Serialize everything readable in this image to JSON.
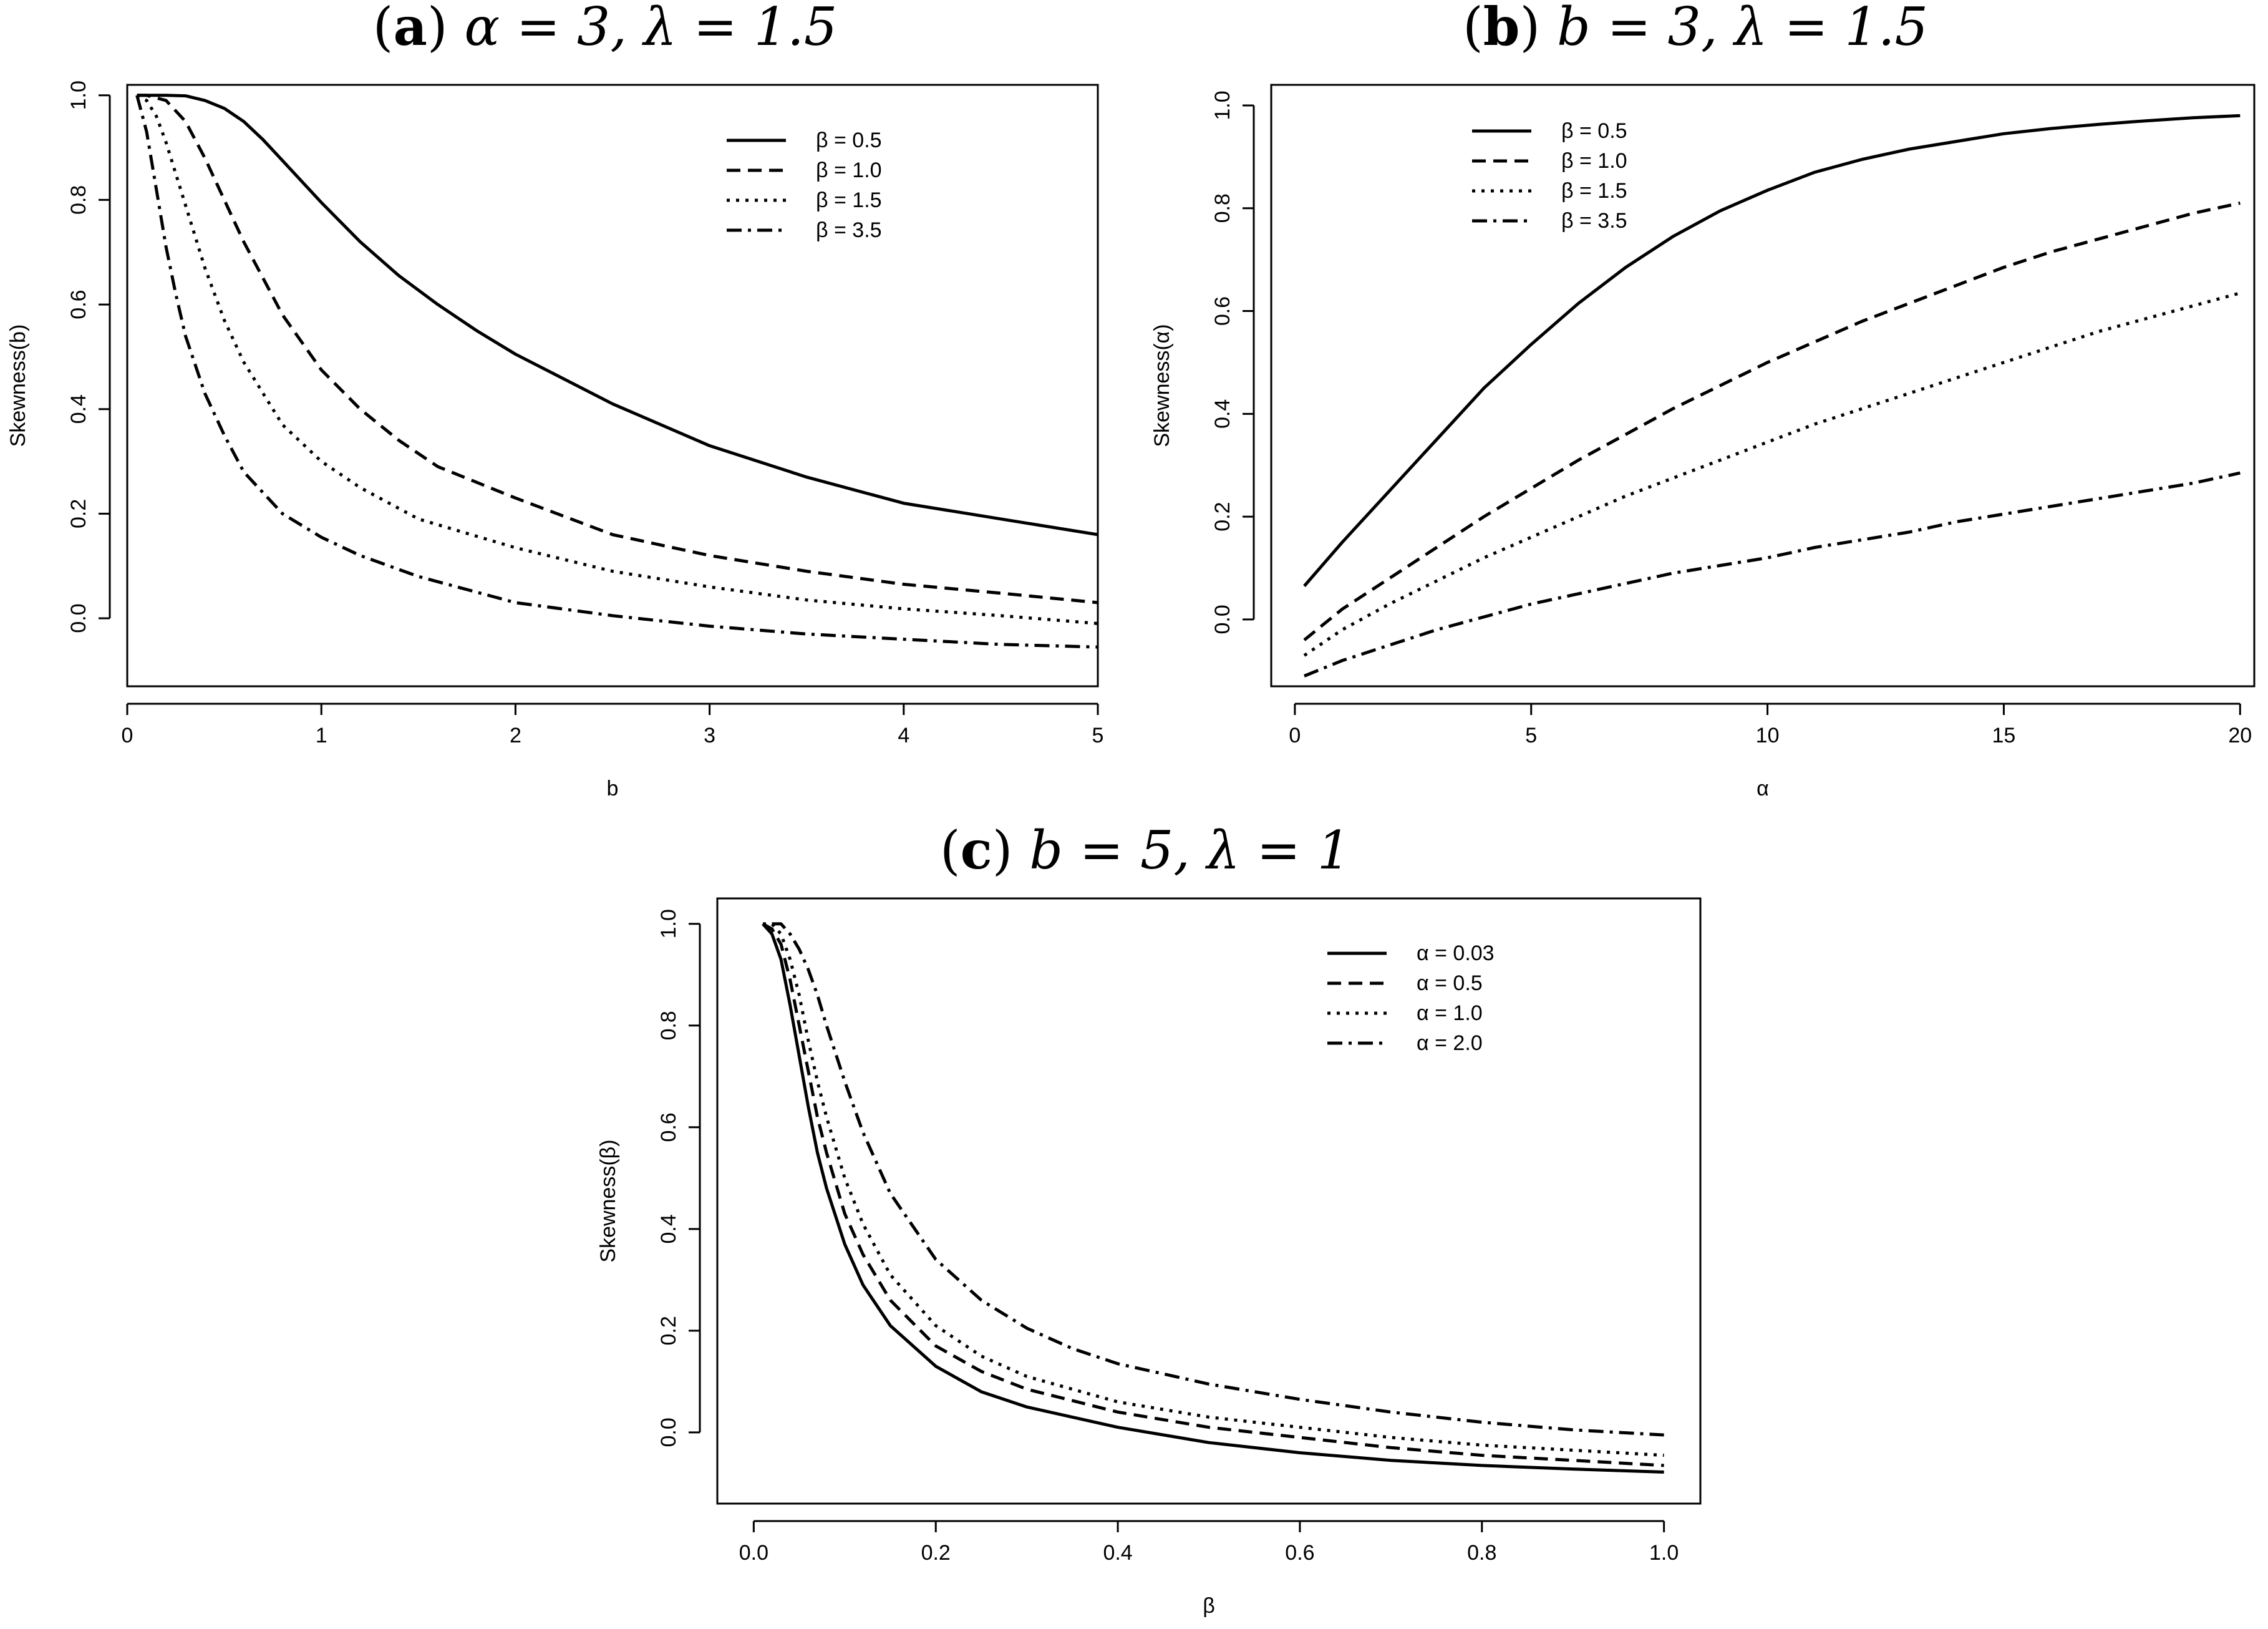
{
  "chart_data": [
    {
      "type": "line",
      "panel": "a",
      "title": {
        "letter": "a",
        "params": "α = 3, λ = 1.5"
      },
      "xlabel": "b",
      "ylabel": "Skewness(b)",
      "xlim": [
        0,
        5
      ],
      "ylim": [
        -0.13,
        1.02
      ],
      "xticks": [
        0,
        1,
        2,
        3,
        4,
        5
      ],
      "yticks": [
        0.0,
        0.2,
        0.4,
        0.6,
        0.8,
        1.0
      ],
      "xtick_labels": [
        "0",
        "1",
        "2",
        "3",
        "4",
        "5"
      ],
      "ytick_labels": [
        "0.0",
        "0.2",
        "0.4",
        "0.6",
        "0.8",
        "1.0"
      ],
      "legend_position": "top-right",
      "series": [
        {
          "name": "β = 0.5",
          "dash": "solid",
          "x": [
            0.05,
            0.2,
            0.3,
            0.4,
            0.5,
            0.6,
            0.7,
            0.8,
            0.9,
            1.0,
            1.2,
            1.4,
            1.6,
            1.8,
            2.0,
            2.5,
            3.0,
            3.5,
            4.0,
            4.5,
            5.0
          ],
          "y": [
            1.0,
            1.0,
            0.999,
            0.99,
            0.975,
            0.95,
            0.915,
            0.875,
            0.835,
            0.795,
            0.72,
            0.655,
            0.6,
            0.55,
            0.505,
            0.41,
            0.33,
            0.27,
            0.22,
            0.19,
            0.16
          ]
        },
        {
          "name": "β = 1.0",
          "dash": "dashed",
          "x": [
            0.05,
            0.1,
            0.2,
            0.3,
            0.4,
            0.5,
            0.6,
            0.8,
            1.0,
            1.2,
            1.4,
            1.6,
            2.0,
            2.5,
            3.0,
            3.5,
            4.0,
            4.5,
            5.0
          ],
          "y": [
            1.0,
            1.0,
            0.99,
            0.95,
            0.88,
            0.8,
            0.72,
            0.58,
            0.475,
            0.4,
            0.34,
            0.29,
            0.23,
            0.16,
            0.12,
            0.09,
            0.065,
            0.048,
            0.03
          ]
        },
        {
          "name": "β = 1.5",
          "dash": "dotted",
          "x": [
            0.05,
            0.1,
            0.15,
            0.2,
            0.3,
            0.4,
            0.5,
            0.6,
            0.8,
            1.0,
            1.2,
            1.5,
            2.0,
            2.5,
            3.0,
            3.5,
            4.0,
            4.5,
            5.0
          ],
          "y": [
            1.0,
            0.99,
            0.96,
            0.91,
            0.79,
            0.67,
            0.57,
            0.49,
            0.37,
            0.3,
            0.25,
            0.19,
            0.135,
            0.09,
            0.06,
            0.035,
            0.018,
            0.005,
            -0.01
          ]
        },
        {
          "name": "β = 3.5",
          "dash": "dashdot",
          "x": [
            0.05,
            0.1,
            0.15,
            0.2,
            0.25,
            0.3,
            0.4,
            0.5,
            0.6,
            0.8,
            1.0,
            1.2,
            1.5,
            2.0,
            2.5,
            3.0,
            3.5,
            4.0,
            4.5,
            5.0
          ],
          "y": [
            1.0,
            0.93,
            0.82,
            0.71,
            0.62,
            0.54,
            0.43,
            0.35,
            0.28,
            0.2,
            0.155,
            0.12,
            0.08,
            0.03,
            0.005,
            -0.015,
            -0.03,
            -0.04,
            -0.05,
            -0.055
          ]
        }
      ]
    },
    {
      "type": "line",
      "panel": "b",
      "title": {
        "letter": "b",
        "params": "b = 3, λ = 1.5"
      },
      "xlabel": "α",
      "ylabel": "Skewness(α)",
      "xlim": [
        -0.5,
        20.3
      ],
      "ylim": [
        -0.13,
        1.04
      ],
      "xticks": [
        0,
        5,
        10,
        15,
        20
      ],
      "yticks": [
        0.0,
        0.2,
        0.4,
        0.6,
        0.8,
        1.0
      ],
      "xtick_labels": [
        "0",
        "5",
        "10",
        "15",
        "20"
      ],
      "ytick_labels": [
        "0.0",
        "0.2",
        "0.4",
        "0.6",
        "0.8",
        "1.0"
      ],
      "legend_position": "top-left",
      "series": [
        {
          "name": "β = 0.5",
          "dash": "solid",
          "x": [
            0.2,
            1,
            2,
            3,
            4,
            5,
            6,
            7,
            8,
            9,
            10,
            11,
            12,
            13,
            14,
            15,
            16,
            17,
            18,
            19,
            20
          ],
          "y": [
            0.065,
            0.15,
            0.25,
            0.35,
            0.45,
            0.535,
            0.615,
            0.685,
            0.745,
            0.795,
            0.835,
            0.87,
            0.895,
            0.915,
            0.93,
            0.945,
            0.955,
            0.963,
            0.97,
            0.976,
            0.98
          ]
        },
        {
          "name": "β = 1.0",
          "dash": "dashed",
          "x": [
            0.2,
            1,
            2,
            3,
            4,
            5,
            6,
            7,
            8,
            9,
            10,
            11,
            12,
            13,
            14,
            15,
            16,
            17,
            18,
            19,
            20
          ],
          "y": [
            -0.04,
            0.02,
            0.08,
            0.14,
            0.2,
            0.255,
            0.31,
            0.36,
            0.41,
            0.455,
            0.5,
            0.54,
            0.58,
            0.615,
            0.65,
            0.685,
            0.715,
            0.74,
            0.765,
            0.79,
            0.81
          ]
        },
        {
          "name": "β = 1.5",
          "dash": "dotted",
          "x": [
            0.2,
            1,
            2,
            3,
            4,
            5,
            6,
            7,
            8,
            9,
            10,
            11,
            12,
            13,
            14,
            15,
            16,
            17,
            18,
            19,
            20
          ],
          "y": [
            -0.07,
            -0.02,
            0.03,
            0.075,
            0.12,
            0.16,
            0.2,
            0.24,
            0.275,
            0.31,
            0.345,
            0.38,
            0.41,
            0.44,
            0.47,
            0.5,
            0.53,
            0.56,
            0.585,
            0.61,
            0.635
          ]
        },
        {
          "name": "β = 3.5",
          "dash": "dashdot",
          "x": [
            0.2,
            1,
            2,
            3,
            4,
            5,
            6,
            7,
            8,
            9,
            10,
            11,
            12,
            13,
            14,
            15,
            16,
            17,
            18,
            19,
            20
          ],
          "y": [
            -0.11,
            -0.08,
            -0.05,
            -0.02,
            0.005,
            0.03,
            0.05,
            0.07,
            0.09,
            0.105,
            0.12,
            0.14,
            0.155,
            0.17,
            0.19,
            0.205,
            0.22,
            0.235,
            0.25,
            0.265,
            0.285
          ]
        }
      ]
    },
    {
      "type": "line",
      "panel": "c",
      "title": {
        "letter": "c",
        "params": "b = 5, λ = 1"
      },
      "xlabel": "β",
      "ylabel": "Skewness(β)",
      "xlim": [
        -0.04,
        1.04
      ],
      "ylim": [
        -0.14,
        1.05
      ],
      "xticks": [
        0.0,
        0.2,
        0.4,
        0.6,
        0.8,
        1.0
      ],
      "yticks": [
        0.0,
        0.2,
        0.4,
        0.6,
        0.8,
        1.0
      ],
      "xtick_labels": [
        "0.0",
        "0.2",
        "0.4",
        "0.6",
        "0.8",
        "1.0"
      ],
      "ytick_labels": [
        "0.0",
        "0.2",
        "0.4",
        "0.6",
        "0.8",
        "1.0"
      ],
      "legend_position": "top-right",
      "series": [
        {
          "name": "α = 0.03",
          "dash": "solid",
          "x": [
            0.01,
            0.02,
            0.03,
            0.04,
            0.05,
            0.06,
            0.07,
            0.08,
            0.1,
            0.12,
            0.15,
            0.2,
            0.25,
            0.3,
            0.4,
            0.5,
            0.6,
            0.7,
            0.8,
            0.9,
            1.0
          ],
          "y": [
            1.0,
            0.98,
            0.93,
            0.84,
            0.74,
            0.64,
            0.55,
            0.48,
            0.37,
            0.29,
            0.21,
            0.13,
            0.08,
            0.05,
            0.01,
            -0.02,
            -0.04,
            -0.055,
            -0.065,
            -0.072,
            -0.078
          ]
        },
        {
          "name": "α = 0.5",
          "dash": "dashed",
          "x": [
            0.01,
            0.02,
            0.03,
            0.04,
            0.05,
            0.06,
            0.07,
            0.08,
            0.1,
            0.12,
            0.15,
            0.2,
            0.25,
            0.3,
            0.4,
            0.5,
            0.6,
            0.7,
            0.8,
            0.9,
            1.0
          ],
          "y": [
            1.0,
            0.99,
            0.96,
            0.89,
            0.8,
            0.71,
            0.62,
            0.55,
            0.43,
            0.35,
            0.26,
            0.17,
            0.12,
            0.085,
            0.04,
            0.01,
            -0.01,
            -0.03,
            -0.045,
            -0.055,
            -0.065
          ]
        },
        {
          "name": "α = 1.0",
          "dash": "dotted",
          "x": [
            0.01,
            0.02,
            0.03,
            0.04,
            0.05,
            0.06,
            0.07,
            0.08,
            0.1,
            0.12,
            0.15,
            0.2,
            0.25,
            0.3,
            0.4,
            0.5,
            0.6,
            0.7,
            0.8,
            0.9,
            1.0
          ],
          "y": [
            1.0,
            1.0,
            0.98,
            0.93,
            0.86,
            0.77,
            0.69,
            0.62,
            0.5,
            0.41,
            0.31,
            0.21,
            0.15,
            0.11,
            0.06,
            0.03,
            0.01,
            -0.01,
            -0.025,
            -0.035,
            -0.045
          ]
        },
        {
          "name": "α = 2.0",
          "dash": "dashdot",
          "x": [
            0.02,
            0.03,
            0.04,
            0.05,
            0.06,
            0.07,
            0.08,
            0.1,
            0.12,
            0.15,
            0.2,
            0.25,
            0.3,
            0.35,
            0.4,
            0.5,
            0.6,
            0.7,
            0.8,
            0.9,
            1.0
          ],
          "y": [
            1.0,
            1.0,
            0.98,
            0.95,
            0.91,
            0.86,
            0.8,
            0.69,
            0.59,
            0.47,
            0.34,
            0.26,
            0.205,
            0.165,
            0.135,
            0.095,
            0.065,
            0.04,
            0.02,
            0.005,
            -0.005
          ]
        }
      ]
    }
  ]
}
